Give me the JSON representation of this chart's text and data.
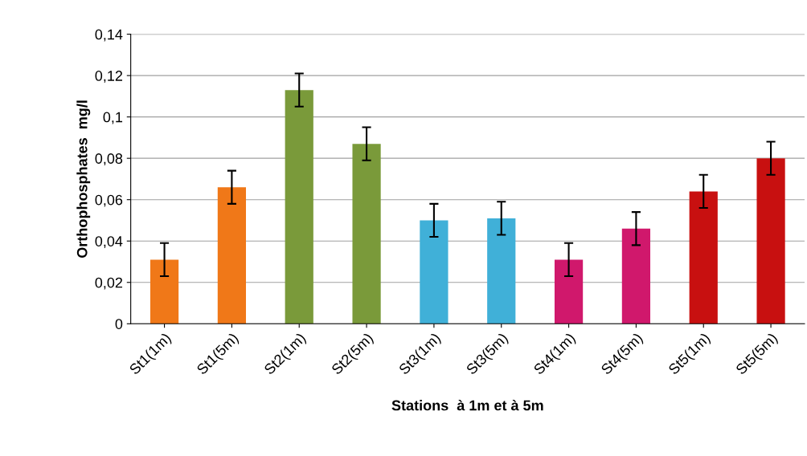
{
  "chart_data": {
    "type": "bar",
    "xlabel": "Stations  à 1m et à 5m",
    "ylabel": "Orthophosphates  mg/l",
    "categories": [
      "St1(1m)",
      "St1(5m)",
      "St2(1m)",
      "St2(5m)",
      "St3(1m)",
      "St3(5m)",
      "St4(1m)",
      "St4(5m)",
      "St5(1m)",
      "St5(5m)"
    ],
    "values": [
      0.031,
      0.066,
      0.113,
      0.087,
      0.05,
      0.051,
      0.031,
      0.046,
      0.064,
      0.08
    ],
    "errors": [
      0.008,
      0.008,
      0.008,
      0.008,
      0.008,
      0.008,
      0.008,
      0.008,
      0.008,
      0.008
    ],
    "colors": [
      "#f07818",
      "#f07818",
      "#7a9a3a",
      "#7a9a3a",
      "#40b0d8",
      "#40b0d8",
      "#d0186c",
      "#d0186c",
      "#c81010",
      "#c81010"
    ],
    "ylim": [
      0,
      0.14
    ],
    "yticks": [
      0,
      {
        "value": 0.02,
        "label": "0,02"
      },
      {
        "value": 0.04,
        "label": "0,04"
      },
      {
        "value": 0.06,
        "label": "0,06"
      },
      {
        "value": 0.08,
        "label": "0,08"
      },
      {
        "value": 0.1,
        "label": "0,1"
      },
      {
        "value": 0.12,
        "label": "0,12"
      },
      {
        "value": 0.14,
        "label": "0,14"
      }
    ],
    "grid": "y",
    "legend": false
  }
}
